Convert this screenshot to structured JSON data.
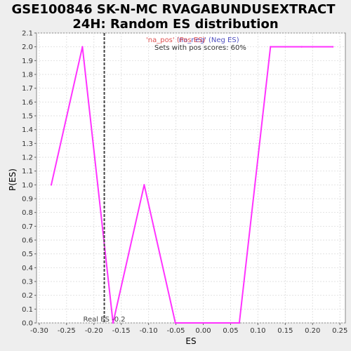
{
  "chart_data": {
    "type": "line",
    "title_line1": "GSE100846 SK-N-MC RVAGABUNDUSEXTRACT",
    "title_line2": "24H: Random ES distribution",
    "xlabel": "ES",
    "ylabel": "P(ES)",
    "xlim": [
      -0.305,
      0.26
    ],
    "ylim": [
      0,
      2.1
    ],
    "xticks": [
      -0.3,
      -0.25,
      -0.2,
      -0.15,
      -0.1,
      -0.05,
      0.0,
      0.05,
      0.1,
      0.15,
      0.2,
      0.25
    ],
    "xtick_labels": [
      "-0.30",
      "-0.25",
      "-0.20",
      "-0.15",
      "-0.10",
      "-0.05",
      "0.00",
      "0.05",
      "0.10",
      "0.15",
      "0.20",
      "0.25"
    ],
    "yticks": [
      0.0,
      0.1,
      0.2,
      0.3,
      0.4,
      0.5,
      0.6,
      0.7,
      0.8,
      0.9,
      1.0,
      1.1,
      1.2,
      1.3,
      1.4,
      1.5,
      1.6,
      1.7,
      1.8,
      1.9,
      2.0,
      2.1
    ],
    "ytick_labels": [
      "0.0",
      "0.1",
      "0.2",
      "0.3",
      "0.4",
      "0.5",
      "0.6",
      "0.7",
      "0.8",
      "0.9",
      "1.0",
      "1.1",
      "1.2",
      "1.3",
      "1.4",
      "1.5",
      "1.6",
      "1.7",
      "1.8",
      "1.9",
      "2.0",
      "2.1"
    ],
    "grid": true,
    "series": [
      {
        "color": "#ff33ff",
        "x": [
          -0.278,
          -0.221,
          -0.165,
          -0.108,
          -0.051,
          0.066,
          0.123,
          0.18,
          0.237
        ],
        "y": [
          1.0,
          2.0,
          0.0,
          1.0,
          0.0,
          0.0,
          2.0,
          2.0,
          2.0
        ]
      }
    ],
    "real_es": {
      "x": -0.181,
      "label": "Real ES -0.2",
      "color": "#444444"
    },
    "legend": {
      "pos_label": "'na_pos' (Pos ES)",
      "neg_label": "'na_neg' (Neg ES)",
      "pos_color": "#e05050",
      "neg_color": "#5050c0",
      "summary": "Sets with pos scores: 60%"
    }
  }
}
